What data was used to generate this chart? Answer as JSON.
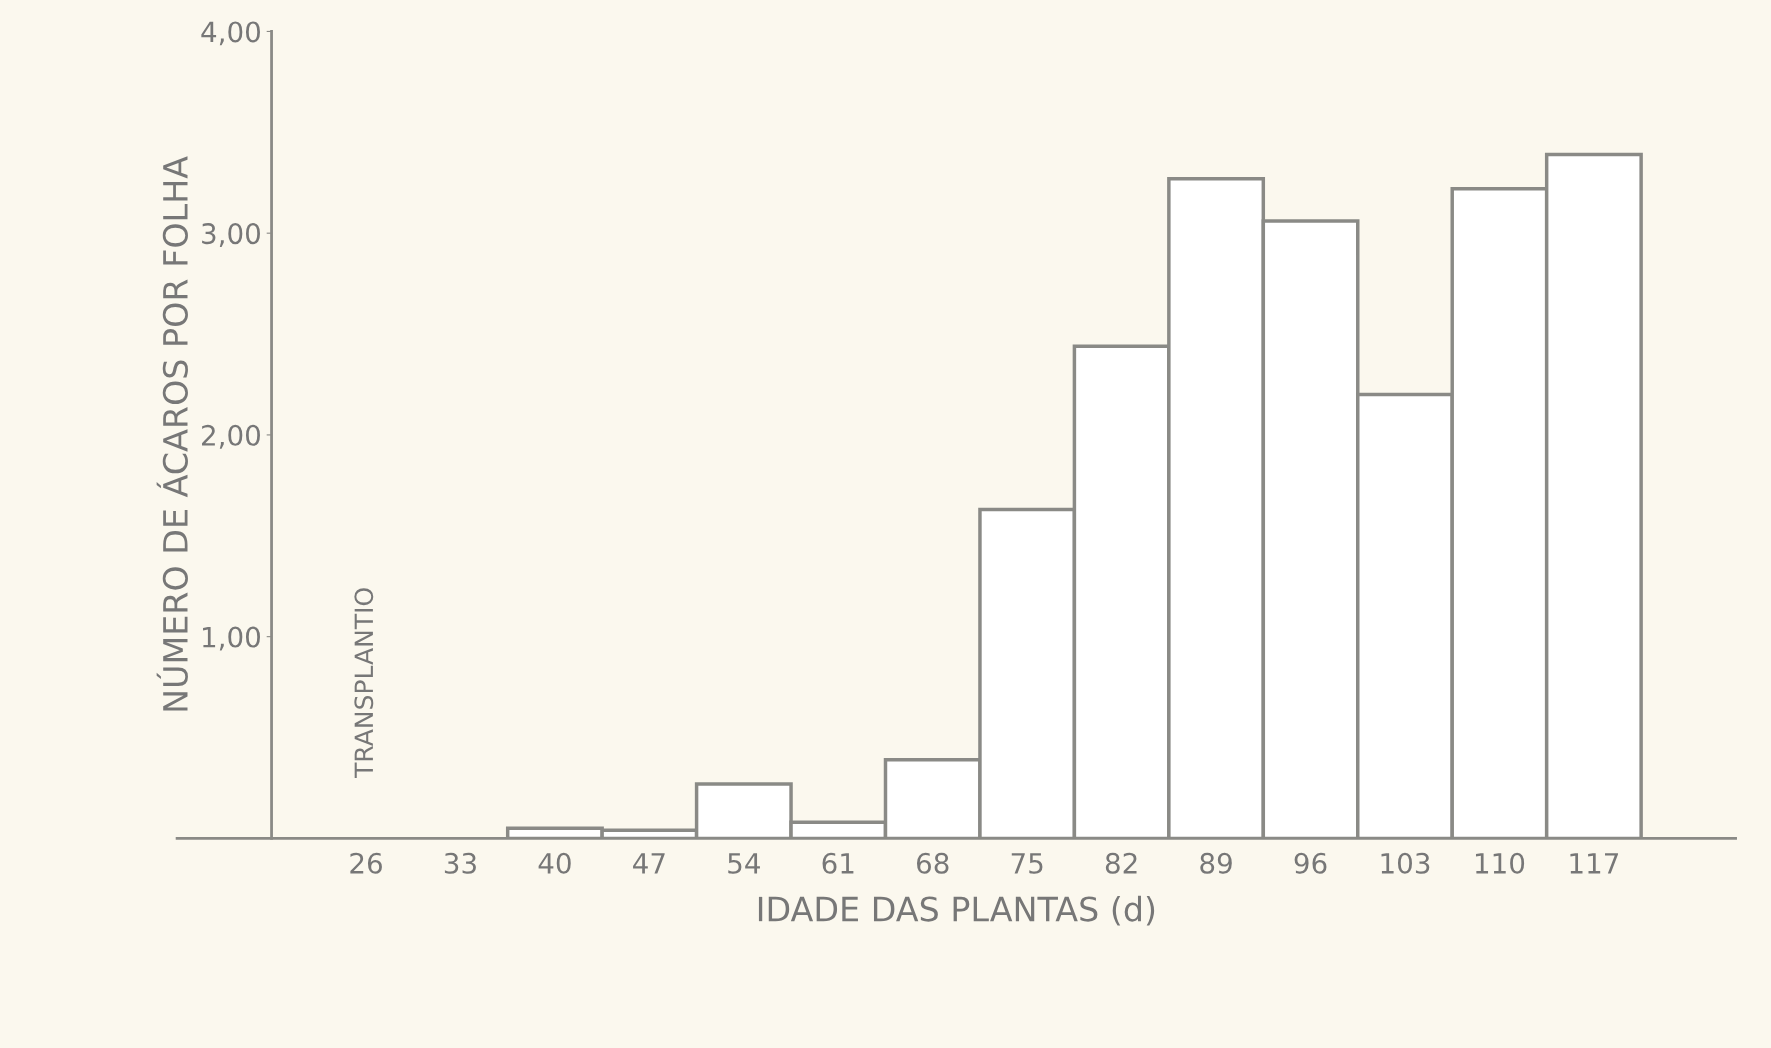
{
  "chart_data": {
    "type": "bar",
    "xlabel": "IDADE DAS PLANTAS (d)",
    "ylabel": "NÚMERO DE ÁCAROS POR FOLHA",
    "categories": [
      "26",
      "33",
      "40",
      "47",
      "54",
      "61",
      "68",
      "75",
      "82",
      "89",
      "96",
      "103",
      "110",
      "117"
    ],
    "values": [
      0,
      0,
      0.05,
      0.04,
      0.27,
      0.08,
      0.39,
      1.63,
      2.44,
      3.27,
      3.06,
      2.2,
      3.22,
      3.39
    ],
    "color": "#ffffff",
    "ylim": [
      0,
      4
    ],
    "yticks": [
      {
        "value": 1,
        "label": "1,00"
      },
      {
        "value": 2,
        "label": "2,00"
      },
      {
        "value": 3,
        "label": "3,00"
      },
      {
        "value": 4,
        "label": "4,00"
      }
    ],
    "annotations": [
      "TRANSPLANTIO"
    ],
    "grid": false,
    "legend": false
  }
}
